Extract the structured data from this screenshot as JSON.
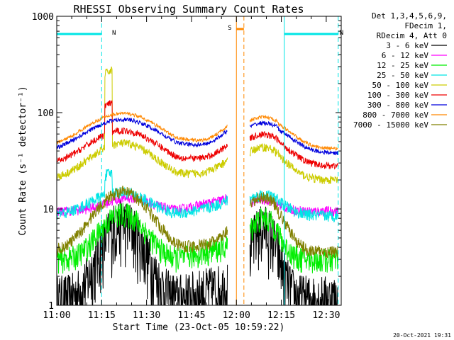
{
  "chart_data": {
    "type": "line",
    "title": "RHESSI Observing Summary Count Rates",
    "xlabel": "Start Time (23-Oct-05 10:59:22)",
    "ylabel": "Count Rate (s⁻¹ detector⁻¹)",
    "yscale": "log",
    "ylim": [
      1,
      1000
    ],
    "xlim_minutes": [
      0,
      95
    ],
    "x_tick_labels": [
      "11:00",
      "11:15",
      "11:30",
      "11:45",
      "12:00",
      "12:15",
      "12:30"
    ],
    "x_tick_minutes": [
      0,
      15,
      30,
      45,
      60,
      75,
      90
    ],
    "y_tick_labels": [
      "1",
      "10",
      "100",
      "1000"
    ],
    "y_tick_values": [
      1,
      10,
      100,
      1000
    ],
    "legend_header": [
      "Det 1,3,4,5,6,9,",
      "FDecim 1,",
      "RDecim 4, Att 0"
    ],
    "data_gap_minutes": [
      57,
      64.5
    ],
    "series": [
      {
        "name": "3 - 6 keV",
        "color": "#000000",
        "base": 1.2,
        "peak": 7.5,
        "peak_min": 22,
        "width": 8,
        "noise": 0.7,
        "spike": 1.0
      },
      {
        "name": "6 - 12 keV",
        "color": "#ff00ff",
        "base": 9.5,
        "peak": 13,
        "peak_min": 24,
        "width": 10,
        "noise": 0.12,
        "spike": 1.0
      },
      {
        "name": "12 - 25 keV",
        "color": "#00ee00",
        "base": 3.0,
        "peak": 9,
        "peak_min": 22,
        "width": 9,
        "noise": 0.3,
        "spike": 1.0
      },
      {
        "name": "25 - 50 keV",
        "color": "#00e5e5",
        "base": 8.5,
        "peak": 15,
        "peak_min": 21,
        "width": 12,
        "noise": 0.14,
        "spike": 1.6
      },
      {
        "name": "50 - 100 keV",
        "color": "#cccc00",
        "base": 20,
        "peak": 48,
        "peak_min": 22,
        "width": 13,
        "noise": 0.1,
        "spike": 6.0
      },
      {
        "name": "100 - 300 keV",
        "color": "#ee0000",
        "base": 28,
        "peak": 65,
        "peak_min": 22,
        "width": 14,
        "noise": 0.08,
        "spike": 2.0
      },
      {
        "name": "300 - 800 keV",
        "color": "#0000dd",
        "base": 38,
        "peak": 85,
        "peak_min": 22,
        "width": 15,
        "noise": 0.05,
        "spike": 1.0
      },
      {
        "name": "800 - 7000 keV",
        "color": "#ff8800",
        "base": 42,
        "peak": 98,
        "peak_min": 22,
        "width": 15,
        "noise": 0.04,
        "spike": 1.0
      },
      {
        "name": "7000 - 15000 keV",
        "color": "#808000",
        "base": 3.6,
        "peak": 15,
        "peak_min": 22,
        "width": 11,
        "noise": 0.15,
        "spike": 1.0
      }
    ],
    "annotations": [
      {
        "label": "N",
        "color": "#00e5e5",
        "start_min": 0,
        "end_min": 15,
        "dashed_min": 15
      },
      {
        "label": "N",
        "color": "#00e5e5",
        "start_min": 76,
        "end_min": 94,
        "dashed_min": 94
      },
      {
        "label": "S",
        "color": "#ff8800",
        "start_min": 60,
        "end_min": 62.5,
        "dashed_min": 62.5
      }
    ],
    "grid": false
  },
  "footer": {
    "timestamp": "20-Oct-2021 19:31"
  }
}
